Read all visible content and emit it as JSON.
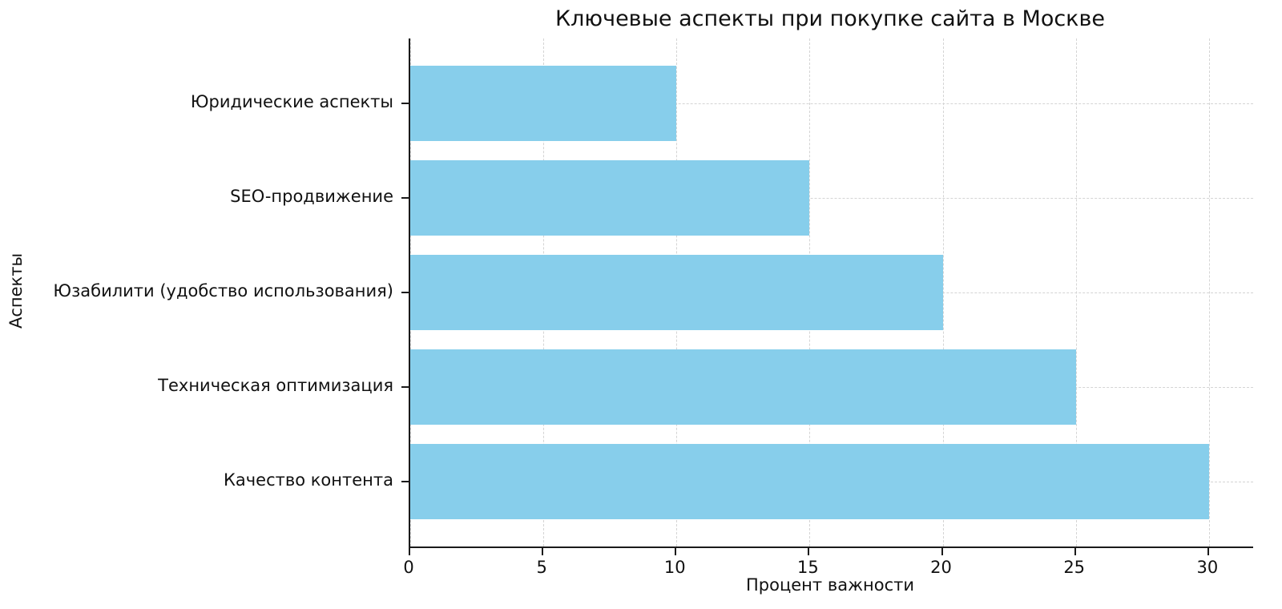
{
  "chart_data": {
    "type": "bar",
    "orientation": "horizontal",
    "title": "Ключевые аспекты при покупке сайта в Москве",
    "xlabel": "Процент важности",
    "ylabel": "Аспекты",
    "categories": [
      "Юридические аспекты",
      "SEO-продвижение",
      "Юзабилити (удобство использования)",
      "Техническая оптимизация",
      "Качество контента"
    ],
    "values": [
      10,
      15,
      20,
      25,
      30
    ],
    "x_ticks": [
      0,
      5,
      10,
      15,
      20,
      25,
      30
    ],
    "xlim": [
      0,
      31.66
    ],
    "bar_color": "#87CEEB",
    "grid": true,
    "grid_style": "dashed",
    "legend": "none"
  }
}
